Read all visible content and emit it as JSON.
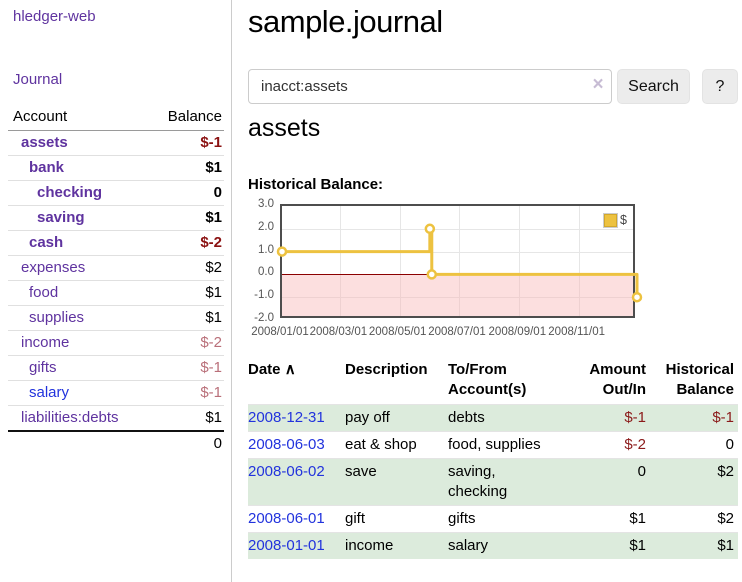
{
  "app": {
    "title": "hledger-web"
  },
  "sidebar": {
    "journal_link": "Journal",
    "accounts": {
      "header_account": "Account",
      "header_balance": "Balance",
      "rows": [
        {
          "name": "assets",
          "balance": "$-1"
        },
        {
          "name": "bank",
          "balance": "$1"
        },
        {
          "name": "checking",
          "balance": "0"
        },
        {
          "name": "saving",
          "balance": "$1"
        },
        {
          "name": "cash",
          "balance": "$-2"
        },
        {
          "name": "expenses",
          "balance": "$2"
        },
        {
          "name": "food",
          "balance": "$1"
        },
        {
          "name": "supplies",
          "balance": "$1"
        },
        {
          "name": "income",
          "balance": "$-2"
        },
        {
          "name": "gifts",
          "balance": "$-1"
        },
        {
          "name": "salary",
          "balance": "$-1"
        },
        {
          "name": "liabilities:debts",
          "balance": "$1"
        }
      ],
      "total": "0"
    }
  },
  "main": {
    "title": "sample.journal",
    "search": {
      "value": "inacct:assets",
      "clear_icon": "×",
      "search_button": "Search",
      "help_button": "?"
    },
    "account_heading": "assets",
    "chart_title": "Historical Balance:"
  },
  "chart_data": {
    "type": "line",
    "title": "Historical Balance:",
    "step": true,
    "x": [
      "2008-01-01",
      "2008-06-01",
      "2008-06-03",
      "2008-12-31"
    ],
    "values": [
      1,
      2,
      0,
      -1
    ],
    "series_label": "$",
    "x_ticks": [
      "2008/01/01",
      "2008/03/01",
      "2008/05/01",
      "2008/07/01",
      "2008/09/01",
      "2008/11/01"
    ],
    "y_ticks": [
      "3.0",
      "2.0",
      "1.0",
      "0.0",
      "-1.0",
      "-2.0"
    ],
    "ylim": [
      -2,
      3
    ],
    "xlim_days": [
      0,
      365
    ],
    "grid": true,
    "legend_position": "top-right",
    "line_color": "#edc240",
    "negative_fill": "#f8d6d6",
    "zero_line_color": "#8b0000"
  },
  "register": {
    "headers": {
      "date": "Date",
      "sort_icon": "∧",
      "description": "Description",
      "accounts": "To/From Account(s)",
      "amount": "Amount Out/In",
      "balance": "Historical Balance"
    },
    "rows": [
      {
        "date": "2008-12-31",
        "description": "pay off",
        "accounts": "debts",
        "amount": "$-1",
        "balance": "$-1"
      },
      {
        "date": "2008-06-03",
        "description": "eat & shop",
        "accounts": "food, supplies",
        "amount": "$-2",
        "balance": "0"
      },
      {
        "date": "2008-06-02",
        "description": "save",
        "accounts": "saving, checking",
        "amount": "0",
        "balance": "$2"
      },
      {
        "date": "2008-06-01",
        "description": "gift",
        "accounts": "gifts",
        "amount": "$1",
        "balance": "$2"
      },
      {
        "date": "2008-01-01",
        "description": "income",
        "accounts": "salary",
        "amount": "$1",
        "balance": "$1"
      }
    ]
  }
}
